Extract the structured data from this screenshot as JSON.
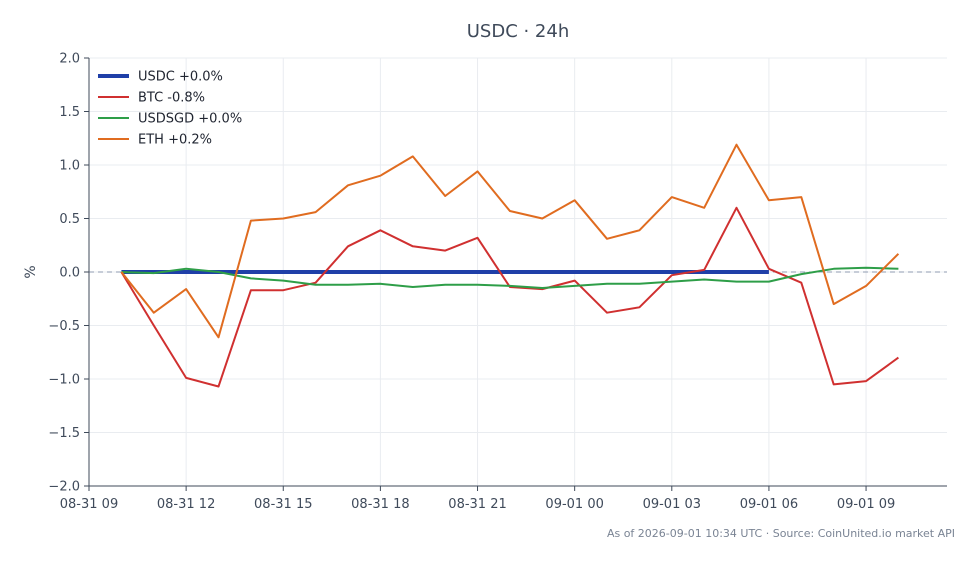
{
  "chart_data": {
    "type": "line",
    "title": "USDC · 24h",
    "ylabel": "%",
    "xlabel": "",
    "ylim": [
      -2.0,
      2.0
    ],
    "xlim": [
      0,
      26.5
    ],
    "yticks": [
      -2.0,
      -1.5,
      -1.0,
      -0.5,
      0.0,
      0.5,
      1.0,
      1.5,
      2.0
    ],
    "ytick_labels": [
      "−2.0",
      "−1.5",
      "−1.0",
      "−0.5",
      "0.0",
      "0.5",
      "1.0",
      "1.5",
      "2.0"
    ],
    "xticks": [
      {
        "x": 0,
        "label": "08-31 09"
      },
      {
        "x": 3,
        "label": "08-31 12"
      },
      {
        "x": 6,
        "label": "08-31 15"
      },
      {
        "x": 9,
        "label": "08-31 18"
      },
      {
        "x": 12,
        "label": "08-31 21"
      },
      {
        "x": 15,
        "label": "09-01 00"
      },
      {
        "x": 18,
        "label": "09-01 03"
      },
      {
        "x": 21,
        "label": "09-01 06"
      },
      {
        "x": 24,
        "label": "09-01 09"
      }
    ],
    "grid": true,
    "legend_position": "top-left",
    "reference_line": 0.0,
    "series": [
      {
        "name": "USDC +0.0%",
        "color": "#1f3fa8",
        "width": 4,
        "x": [
          1,
          2,
          3,
          4,
          5,
          6,
          7,
          8,
          9,
          10,
          11,
          12,
          13,
          14,
          15,
          16,
          17,
          18,
          19,
          20,
          21
        ],
        "values": [
          0,
          0,
          0,
          0,
          0,
          0,
          0,
          0,
          0,
          0,
          0,
          0,
          0,
          0,
          0,
          0,
          0,
          0,
          0,
          0,
          0
        ]
      },
      {
        "name": "BTC -0.8%",
        "color": "#d03030",
        "width": 2,
        "x": [
          1,
          2,
          3,
          4,
          5,
          6,
          7,
          8,
          9,
          10,
          11,
          12,
          13,
          14,
          15,
          16,
          17,
          18,
          19,
          20,
          21,
          22,
          23,
          24,
          25
        ],
        "values": [
          0.0,
          -0.5,
          -0.99,
          -1.07,
          -0.17,
          -0.17,
          -0.1,
          0.24,
          0.39,
          0.24,
          0.2,
          0.32,
          -0.14,
          -0.16,
          -0.08,
          -0.38,
          -0.33,
          -0.03,
          0.02,
          0.6,
          0.03,
          -0.1,
          -1.05,
          -1.02,
          -0.8
        ]
      },
      {
        "name": "USDSGD +0.0%",
        "color": "#2e9e48",
        "width": 2,
        "x": [
          1,
          2,
          3,
          4,
          5,
          6,
          7,
          8,
          9,
          10,
          11,
          12,
          13,
          14,
          15,
          16,
          17,
          18,
          19,
          20,
          21,
          22,
          23,
          24,
          25
        ],
        "values": [
          0.0,
          -0.01,
          0.03,
          0.0,
          -0.06,
          -0.08,
          -0.12,
          -0.12,
          -0.11,
          -0.14,
          -0.12,
          -0.12,
          -0.13,
          -0.15,
          -0.13,
          -0.11,
          -0.11,
          -0.09,
          -0.07,
          -0.09,
          -0.09,
          -0.02,
          0.03,
          0.04,
          0.03
        ]
      },
      {
        "name": "ETH +0.2%",
        "color": "#e06c20",
        "width": 2,
        "x": [
          1,
          2,
          3,
          4,
          5,
          6,
          7,
          8,
          9,
          10,
          11,
          12,
          13,
          14,
          15,
          16,
          17,
          18,
          19,
          20,
          21,
          22,
          23,
          24,
          25
        ],
        "values": [
          0.0,
          -0.38,
          -0.16,
          -0.61,
          0.48,
          0.5,
          0.56,
          0.81,
          0.9,
          1.08,
          0.71,
          0.94,
          0.57,
          0.5,
          0.67,
          0.31,
          0.39,
          0.7,
          0.6,
          1.19,
          0.67,
          0.7,
          -0.3,
          -0.13,
          0.17
        ]
      }
    ],
    "footer": "As of 2026-09-01 10:34 UTC · Source: CoinUnited.io market API"
  }
}
